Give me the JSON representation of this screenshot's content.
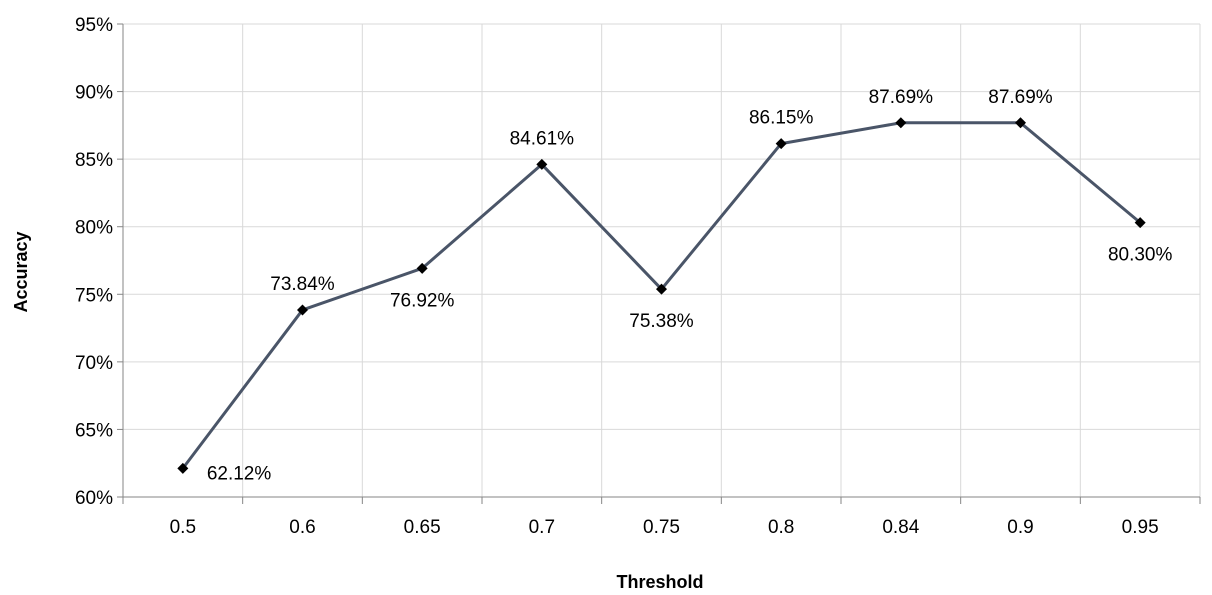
{
  "chart_data": {
    "type": "line",
    "title": "",
    "xlabel": "Threshold",
    "ylabel": "Accuracy",
    "categories": [
      "0.5",
      "0.6",
      "0.65",
      "0.7",
      "0.75",
      "0.8",
      "0.84",
      "0.9",
      "0.95"
    ],
    "series": [
      {
        "values": [
          62.12,
          73.84,
          76.92,
          84.61,
          75.38,
          86.15,
          87.69,
          87.69,
          80.3
        ],
        "labels": [
          "62.12%",
          "73.84%",
          "76.92%",
          "84.61%",
          "75.38%",
          "86.15%",
          "87.69%",
          "87.69%",
          "80.30%"
        ],
        "label_positions": [
          "right",
          "above",
          "below",
          "above",
          "below",
          "above",
          "above",
          "above",
          "below"
        ],
        "color": "#4a5568",
        "marker": "diamond",
        "marker_color": "#000000"
      }
    ],
    "ylim": [
      60,
      95
    ],
    "yticks": [
      60,
      65,
      70,
      75,
      80,
      85,
      90,
      95
    ],
    "ytick_labels": [
      "60%",
      "65%",
      "70%",
      "75%",
      "80%",
      "85%",
      "90%",
      "95%"
    ],
    "grid": true,
    "legend": "none",
    "colors": {
      "grid": "#d9d9d9",
      "axis": "#868686"
    }
  }
}
